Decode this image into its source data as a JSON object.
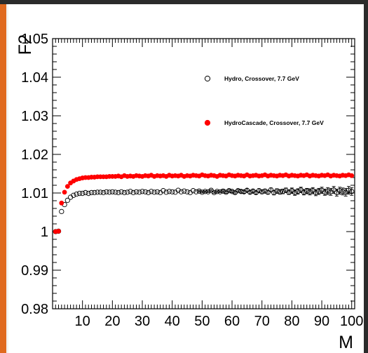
{
  "chart_data": {
    "type": "scatter",
    "xlabel": "M",
    "ylabel": "F2",
    "xlim": [
      0,
      101
    ],
    "ylim": [
      0.98,
      1.05
    ],
    "xticks": [
      10,
      20,
      30,
      40,
      50,
      60,
      70,
      80,
      90,
      100
    ],
    "xtick_labels": [
      "10",
      "20",
      "30",
      "40",
      "50",
      "60",
      "70",
      "80",
      "90",
      "100"
    ],
    "yticks": [
      0.98,
      0.99,
      1.0,
      1.01,
      1.02,
      1.03,
      1.04,
      1.05
    ],
    "ytick_labels": [
      "0.98",
      "0.99",
      "1",
      "1.01",
      "1.02",
      "1.03",
      "1.04",
      "1.05"
    ],
    "legend_position": "top-right",
    "series": [
      {
        "name": "Hydro, Crossover, 7.7 GeV",
        "marker": "open-circle",
        "color": "#000000",
        "x": [
          1,
          2,
          3,
          4,
          5,
          6,
          7,
          8,
          9,
          10,
          11,
          12,
          13,
          14,
          15,
          16,
          17,
          18,
          19,
          20,
          21,
          22,
          23,
          24,
          25,
          26,
          27,
          28,
          29,
          30,
          31,
          32,
          33,
          34,
          35,
          36,
          37,
          38,
          39,
          40,
          41,
          42,
          43,
          44,
          45,
          46,
          47,
          48,
          49,
          50,
          51,
          52,
          53,
          54,
          55,
          56,
          57,
          58,
          59,
          60,
          61,
          62,
          63,
          64,
          65,
          66,
          67,
          68,
          69,
          70,
          71,
          72,
          73,
          74,
          75,
          76,
          77,
          78,
          79,
          80,
          81,
          82,
          83,
          84,
          85,
          86,
          87,
          88,
          89,
          90,
          91,
          92,
          93,
          94,
          95,
          96,
          97,
          98,
          99,
          100
        ],
        "y": [
          1.0,
          1.0001,
          1.0052,
          1.007,
          1.0081,
          1.0089,
          1.0094,
          1.0097,
          1.0099,
          1.0099,
          1.0101,
          1.0099,
          1.0101,
          1.0101,
          1.0102,
          1.0102,
          1.0101,
          1.0103,
          1.0102,
          1.0103,
          1.0102,
          1.0101,
          1.0103,
          1.0101,
          1.0102,
          1.0104,
          1.0101,
          1.0103,
          1.0102,
          1.0104,
          1.0103,
          1.0101,
          1.0104,
          1.0102,
          1.0103,
          1.0101,
          1.0106,
          1.0102,
          1.0104,
          1.0103,
          1.0102,
          1.0107,
          1.0103,
          1.0105,
          1.0103,
          1.0101,
          1.0106,
          1.0103,
          1.0105,
          1.0102,
          1.0104,
          1.0103,
          1.0107,
          1.0101,
          1.0104,
          1.0103,
          1.0105,
          1.0102,
          1.0106,
          1.0104,
          1.0101,
          1.0106,
          1.0104,
          1.0103,
          1.0107,
          1.0102,
          1.0105,
          1.0101,
          1.0106,
          1.0103,
          1.0105,
          1.0102,
          1.0108,
          1.0101,
          1.0105,
          1.0103,
          1.0104,
          1.0107,
          1.0102,
          1.0106,
          1.0101,
          1.0104,
          1.0108,
          1.0102,
          1.0105,
          1.0103,
          1.0106,
          1.0101,
          1.0104,
          1.0107,
          1.0102,
          1.0105,
          1.0103,
          1.0108,
          1.0101,
          1.0106,
          1.0104,
          1.0102,
          1.0107,
          1.0104
        ],
        "yerr": [
          0,
          0,
          0,
          0,
          0,
          0,
          0,
          0,
          0,
          0,
          0,
          0,
          0,
          0,
          0,
          0,
          0,
          0,
          0,
          0,
          0,
          0,
          0,
          0,
          0,
          0,
          0,
          0,
          0,
          0,
          0,
          0,
          0,
          0,
          0,
          0,
          0,
          0,
          0,
          0,
          0,
          0,
          0,
          0,
          0,
          0,
          0,
          0,
          0.0002,
          0.0002,
          0.0002,
          0.0002,
          0.0002,
          0.0002,
          0.0002,
          0.0002,
          0.0003,
          0.0003,
          0.0003,
          0.0003,
          0.0003,
          0.0003,
          0.0004,
          0.0004,
          0.0004,
          0.0004,
          0.0004,
          0.0004,
          0.0005,
          0.0005,
          0.0005,
          0.0005,
          0.0005,
          0.0006,
          0.0006,
          0.0006,
          0.0006,
          0.0006,
          0.0006,
          0.0007,
          0.0007,
          0.0007,
          0.0007,
          0.0007,
          0.0007,
          0.0008,
          0.0008,
          0.0008,
          0.0008,
          0.0008,
          0.0008,
          0.0009,
          0.0009,
          0.0009,
          0.0009,
          0.0009,
          0.0009,
          0.001,
          0.001,
          0.001
        ]
      },
      {
        "name": "HydroCascade, Crossover, 7.7 GeV",
        "marker": "filled-circle",
        "color": "#ff0000",
        "x": [
          1,
          2,
          3,
          4,
          5,
          6,
          7,
          8,
          9,
          10,
          11,
          12,
          13,
          14,
          15,
          16,
          17,
          18,
          19,
          20,
          21,
          22,
          23,
          24,
          25,
          26,
          27,
          28,
          29,
          30,
          31,
          32,
          33,
          34,
          35,
          36,
          37,
          38,
          39,
          40,
          41,
          42,
          43,
          44,
          45,
          46,
          47,
          48,
          49,
          50,
          51,
          52,
          53,
          54,
          55,
          56,
          57,
          58,
          59,
          60,
          61,
          62,
          63,
          64,
          65,
          66,
          67,
          68,
          69,
          70,
          71,
          72,
          73,
          74,
          75,
          76,
          77,
          78,
          79,
          80,
          81,
          82,
          83,
          84,
          85,
          86,
          87,
          88,
          89,
          90,
          91,
          92,
          93,
          94,
          95,
          96,
          97,
          98,
          99,
          100
        ],
        "y": [
          1.0,
          1.0001,
          1.0074,
          1.0102,
          1.0117,
          1.0126,
          1.0131,
          1.0135,
          1.0137,
          1.0139,
          1.014,
          1.014,
          1.0141,
          1.0141,
          1.0142,
          1.0142,
          1.0142,
          1.0142,
          1.0143,
          1.0143,
          1.0143,
          1.0144,
          1.0142,
          1.0145,
          1.0143,
          1.0144,
          1.0143,
          1.0145,
          1.0144,
          1.0143,
          1.0145,
          1.0144,
          1.0146,
          1.0143,
          1.0145,
          1.0144,
          1.0145,
          1.0143,
          1.0146,
          1.0144,
          1.0145,
          1.0144,
          1.0146,
          1.0143,
          1.0145,
          1.0144,
          1.0146,
          1.0145,
          1.0144,
          1.0147,
          1.0145,
          1.0144,
          1.0146,
          1.0145,
          1.0143,
          1.0146,
          1.0145,
          1.0144,
          1.0147,
          1.0145,
          1.0144,
          1.0146,
          1.0145,
          1.0144,
          1.0147,
          1.0144,
          1.0145,
          1.0146,
          1.0144,
          1.0145,
          1.0147,
          1.0144,
          1.0146,
          1.0145,
          1.0144,
          1.0146,
          1.0145,
          1.0147,
          1.0144,
          1.0146,
          1.0145,
          1.0144,
          1.0146,
          1.0145,
          1.0147,
          1.0144,
          1.0146,
          1.0145,
          1.0144,
          1.0146,
          1.0145,
          1.0147,
          1.0144,
          1.0146,
          1.0145,
          1.0144,
          1.0146,
          1.0145,
          1.0147,
          1.0145
        ],
        "yerr": []
      }
    ]
  }
}
